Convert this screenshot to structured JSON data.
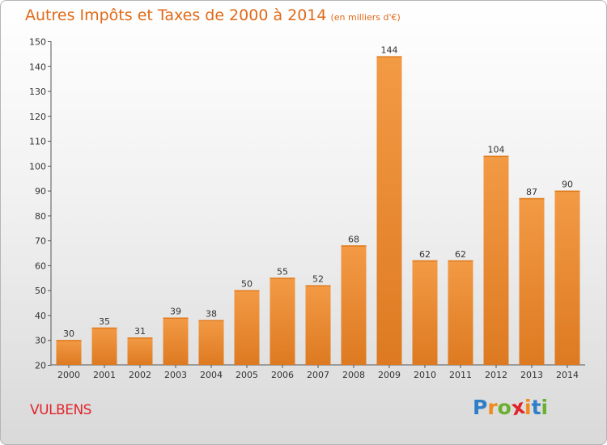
{
  "header": {
    "title": "Autres Impôts et Taxes de 2000 à 2014",
    "subtitle": "(en milliers d'€)"
  },
  "footer": {
    "commune": "VULBENS"
  },
  "brand": {
    "letters": [
      "P",
      "r",
      "o",
      "x",
      "i",
      "t",
      "i"
    ],
    "colors": [
      "#2f7fc7",
      "#f08a1e",
      "#6ab02e",
      "#e0242a",
      "#f08a1e",
      "#2f7fc7",
      "#6ab02e"
    ]
  },
  "colors": {
    "bar": "#f39a45",
    "bar_dark": "#dd7a21"
  },
  "chart_data": {
    "type": "bar",
    "title": "Autres Impôts et Taxes de 2000 à 2014",
    "subtitle": "(en milliers d'€)",
    "categories": [
      "2000",
      "2001",
      "2002",
      "2003",
      "2004",
      "2005",
      "2006",
      "2007",
      "2008",
      "2009",
      "2010",
      "2011",
      "2012",
      "2013",
      "2014"
    ],
    "values": [
      30,
      35,
      31,
      39,
      38,
      50,
      55,
      52,
      68,
      144,
      62,
      62,
      104,
      87,
      90
    ],
    "value_labels": [
      "30",
      "35",
      "31",
      "39",
      "38",
      "50",
      "55",
      "52",
      "68",
      "144",
      "62",
      "62",
      "104",
      "87",
      "90"
    ],
    "ylim": [
      20,
      150
    ],
    "yticks": [
      20,
      30,
      40,
      50,
      60,
      70,
      80,
      90,
      100,
      110,
      120,
      130,
      140,
      150
    ],
    "ytick_labels": [
      "20",
      "30",
      "40",
      "50",
      "60",
      "70",
      "80",
      "90",
      "100",
      "110",
      "120",
      "130",
      "140",
      "150"
    ],
    "grid": false,
    "xlabel": "",
    "ylabel": ""
  }
}
